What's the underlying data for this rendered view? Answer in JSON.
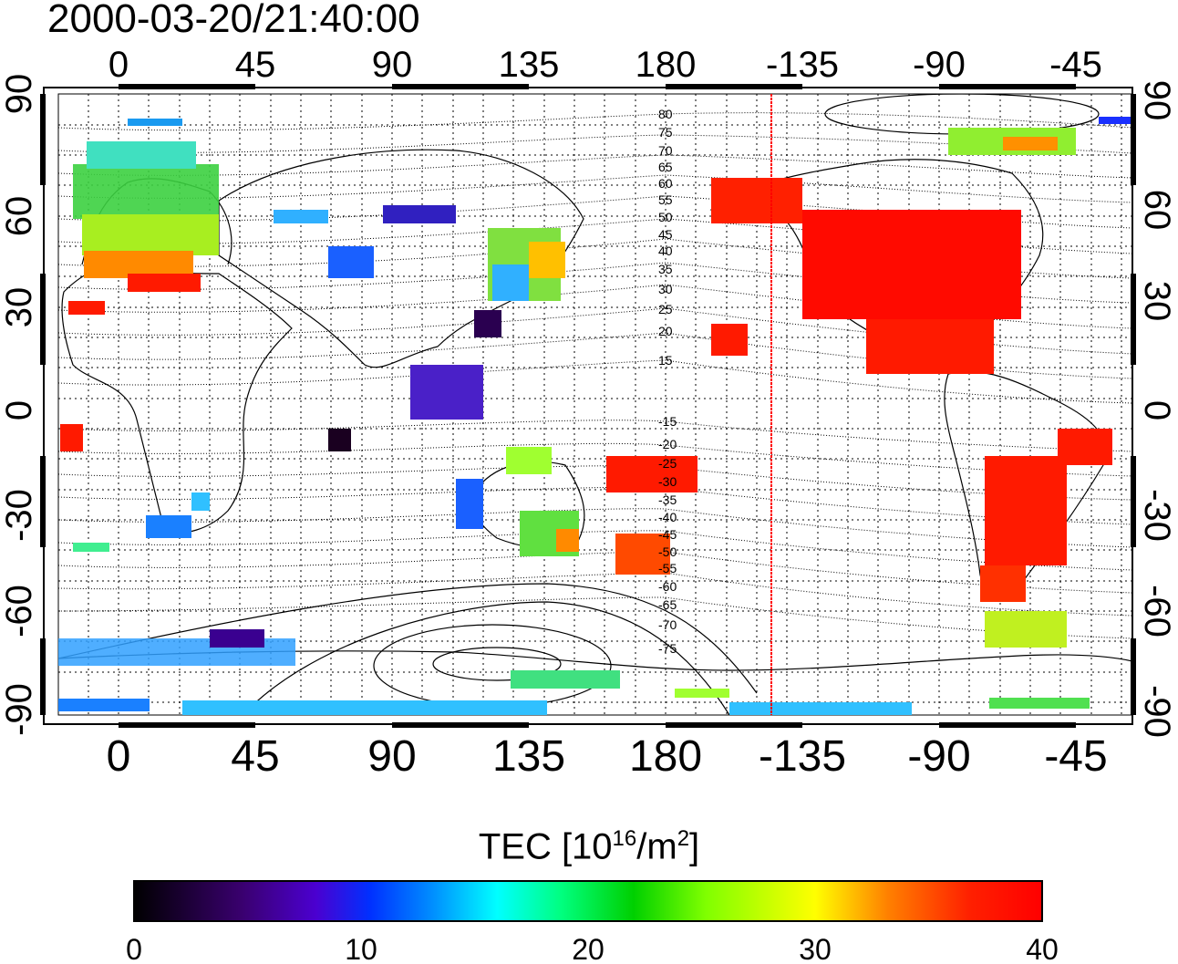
{
  "title": "2000-03-20/21:40:00",
  "map": {
    "lon_ticks_top": [
      "0",
      "45",
      "90",
      "135",
      "180",
      "-135",
      "-90",
      "-45"
    ],
    "lon_ticks_bottom": [
      "0",
      "45",
      "90",
      "135",
      "180",
      "-135",
      "-90",
      "-45"
    ],
    "lat_ticks_left": [
      "90",
      "60",
      "30",
      "0",
      "-30",
      "-60",
      "-90"
    ],
    "lat_ticks_right": [
      "90",
      "60",
      "30",
      "0",
      "-30",
      "-60",
      "-90"
    ],
    "contour_labels": [
      "80",
      "75",
      "70",
      "65",
      "60",
      "55",
      "50",
      "45",
      "40",
      "35",
      "30",
      "25",
      "20",
      "15",
      "-15",
      "-20",
      "-25",
      "-30",
      "-35",
      "-40",
      "-45",
      "-50",
      "-55",
      "-60",
      "-65",
      "-70",
      "-75"
    ],
    "terminator_line_color": "#ff0000"
  },
  "colorbar": {
    "label_main": "TEC  [10",
    "label_exp1": "16",
    "label_mid": "/m",
    "label_exp2": "2",
    "label_end": "]",
    "ticks": [
      "0",
      "10",
      "20",
      "30",
      "40"
    ],
    "range": [
      0,
      40
    ],
    "colors": [
      "#000000",
      "#3a0070",
      "#4b00d0",
      "#0030ff",
      "#0090ff",
      "#00ffff",
      "#00ff80",
      "#00d000",
      "#80ff00",
      "#ffff00",
      "#ff8000",
      "#ff2000",
      "#ff0000"
    ]
  }
}
